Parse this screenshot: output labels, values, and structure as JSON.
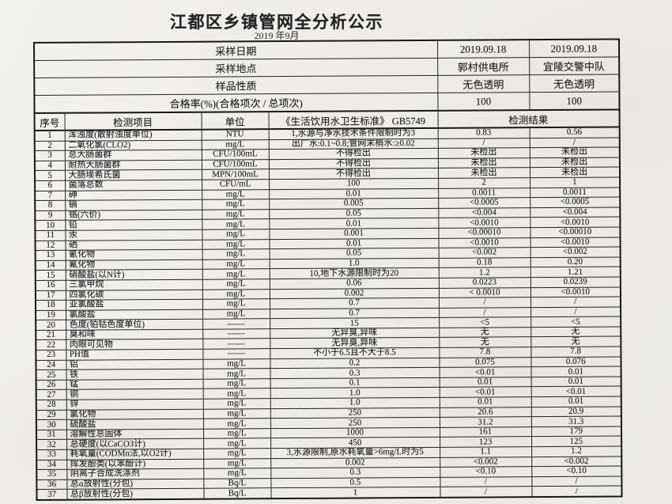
{
  "title": "江都区乡镇管网全分析公示",
  "subtitle": "2019 年9月",
  "info_rows": [
    {
      "label": "采样日期",
      "values": [
        "2019.09.18",
        "2019.09.18"
      ]
    },
    {
      "label": "采样地点",
      "values": [
        "郭村供电所",
        "宜陵交警中队"
      ]
    },
    {
      "label": "样品性质",
      "values": [
        "无色透明",
        "无色透明"
      ]
    },
    {
      "label": "合格率(%)(合格项次 / 总项次)",
      "values": [
        "100",
        "100"
      ]
    }
  ],
  "columns": {
    "no": "序号",
    "item": "检测项目",
    "unit": "单位",
    "standard": "《生活饮用水卫生标准》 GB5749",
    "result": "检测结果"
  },
  "rows": [
    [
      "1",
      "浑浊度(散射浊度单位)",
      "NTU",
      "1,水源与净水技术条件限制时为3",
      "0.83",
      "0.56"
    ],
    [
      "2",
      "二氧化氯(CLO2)",
      "mg/L",
      "出厂水:0.1~0.8;管网末梢水:≥0.02",
      "/",
      "/"
    ],
    [
      "3",
      "总大肠菌群",
      "CFU/100mL",
      "不得检出",
      "未检出",
      "未检出"
    ],
    [
      "4",
      "耐热大肠菌群",
      "CFU/100mL",
      "不得检出",
      "未检出",
      "未检出"
    ],
    [
      "5",
      "大肠埃希氏菌",
      "MPN/100mL",
      "不得检出",
      "未检出",
      "未检出"
    ],
    [
      "6",
      "菌落总数",
      "CFU/mL",
      "100",
      "2",
      "1"
    ],
    [
      "7",
      "砷",
      "mg/L",
      "0.01",
      "0.0011",
      "0.0011"
    ],
    [
      "8",
      "镉",
      "mg/L",
      "0.005",
      "<0.0005",
      "<0.0005"
    ],
    [
      "9",
      "铬(六价)",
      "mg/L",
      "0.05",
      "<0.004",
      "<0.004"
    ],
    [
      "10",
      "铅",
      "mg/L",
      "0.01",
      "<0.0010",
      "<0.0010"
    ],
    [
      "11",
      "汞",
      "mg/L",
      "0.001",
      "<0.00010",
      "<0.00010"
    ],
    [
      "12",
      "硒",
      "mg/L",
      "0.01",
      "<0.0010",
      "<0.0010"
    ],
    [
      "13",
      "氰化物",
      "mg/L",
      "0.05",
      "<0.002",
      "<0.002"
    ],
    [
      "14",
      "氟化物",
      "mg/L",
      "1.0",
      "0.18",
      "0.20"
    ],
    [
      "15",
      "硝酸盐(以N计)",
      "mg/L",
      "10,地下水源限制时为20",
      "1.2",
      "1.21"
    ],
    [
      "16",
      "三氯甲烷",
      "mg/L",
      "0.06",
      "0.0223",
      "0.0239"
    ],
    [
      "17",
      "四氯化碳",
      "mg/L",
      "0.002",
      "< 0.0010",
      "<0.0010"
    ],
    [
      "18",
      "亚氯酸盐",
      "mg/L",
      "0.7",
      "/",
      "/"
    ],
    [
      "19",
      "氯酸盐",
      "mg/L",
      "0.7",
      "/",
      "/"
    ],
    [
      "20",
      "色度(铂钴色度单位)",
      "——",
      "15",
      "<5",
      "<5"
    ],
    [
      "21",
      "臭和味",
      "——",
      "无异臭,异味",
      "无",
      "无"
    ],
    [
      "22",
      "肉眼可见物",
      "——",
      "无异臭,异味",
      "无",
      "无"
    ],
    [
      "23",
      "PH值",
      "——",
      "不小于6.5且不大于8.5",
      "7.8",
      "7.8"
    ],
    [
      "24",
      "铝",
      "mg/L",
      "0.2",
      "0.075",
      "0.076"
    ],
    [
      "25",
      "铁",
      "mg/L",
      "0.3",
      "<0.01",
      "0.01"
    ],
    [
      "26",
      "锰",
      "mg/L",
      "0.1",
      "0.01",
      "0.01"
    ],
    [
      "27",
      "铜",
      "mg/L",
      "1.0",
      "<0.01",
      "<0.01"
    ],
    [
      "28",
      "锌",
      "mg/L",
      "1.0",
      "0.01",
      "0.01"
    ],
    [
      "29",
      "氯化物",
      "mg/L",
      "250",
      "20.6",
      "20.9"
    ],
    [
      "30",
      "硫酸盐",
      "mg/L",
      "250",
      "31.2",
      "31.3"
    ],
    [
      "31",
      "溶解性总固体",
      "mg/L",
      "1000",
      "161",
      "179"
    ],
    [
      "32",
      "总硬度(以CaCO3计)",
      "mg/L",
      "450",
      "123",
      "125"
    ],
    [
      "33",
      "耗氧量(CODMn法,以O2计)",
      "mg/L",
      "3,水源限制,原水耗氧量>6mg/L时为5",
      "1.1",
      "1.2"
    ],
    [
      "34",
      "挥发酚类(以苯酚计)",
      "mg/L",
      "0.002",
      "<0.002",
      "<0.002"
    ],
    [
      "35",
      "阴离子合成洗涤剂",
      "mg/L",
      "0.3",
      "<0.10",
      "<0.10"
    ],
    [
      "36",
      "总α放射性(分包)",
      "Bq/L",
      "0.5",
      "/",
      "/"
    ],
    [
      "37",
      "总β放射性(分包)",
      "Bq/L",
      "1",
      "/",
      "/"
    ]
  ]
}
